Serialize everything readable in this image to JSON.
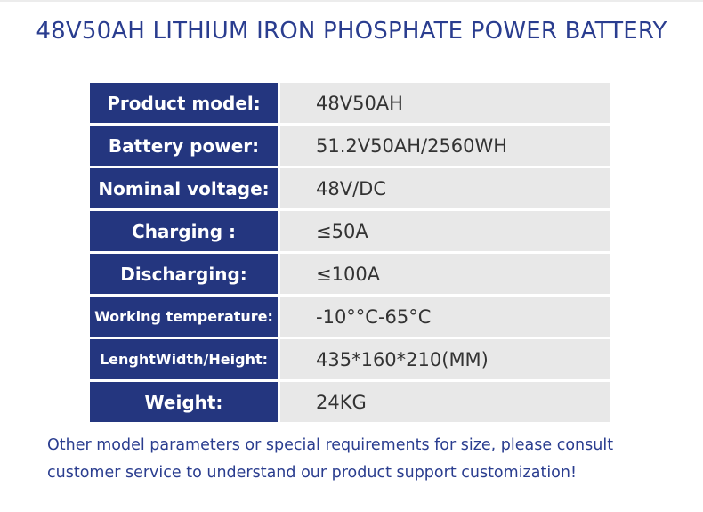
{
  "header": {
    "title": "48V50AH LITHIUM IRON PHOSPHATE POWER BATTERY"
  },
  "table": {
    "rows": [
      [
        "Product model:",
        "48V50AH"
      ],
      [
        "Battery power:",
        "51.2V50AH/2560WH"
      ],
      [
        "Nominal voltage:",
        "48V/DC"
      ],
      [
        "Charging :",
        "≤50A"
      ],
      [
        "Discharging:",
        "≤100A"
      ],
      [
        "Working temperature:",
        "-10°°C-65°C"
      ],
      [
        "LenghtWidth/Height:",
        "435*160*210(MM)"
      ],
      [
        "Weight:",
        "24KG"
      ]
    ]
  },
  "footer": {
    "note": "Other model parameters or special requirements for size, please consult customer service to understand our product support customization!"
  }
}
